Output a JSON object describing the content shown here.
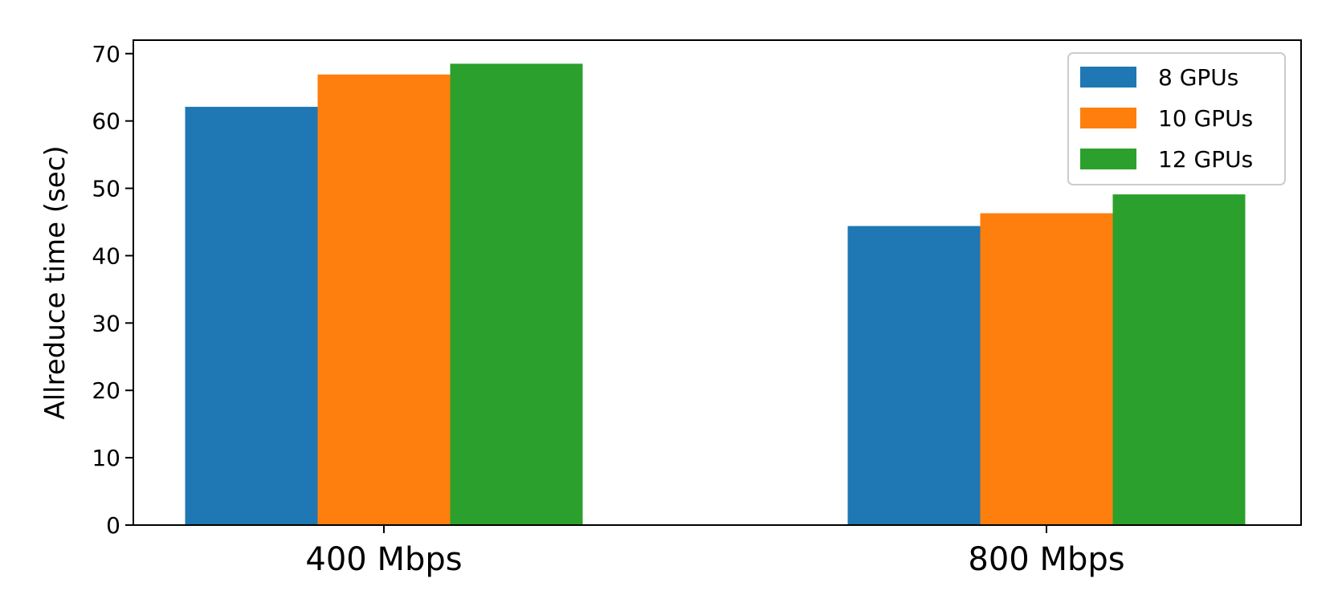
{
  "chart_data": {
    "type": "bar",
    "categories": [
      "400 Mbps",
      "800 Mbps"
    ],
    "series": [
      {
        "name": "8 GPUs",
        "values": [
          62.1,
          44.4
        ],
        "color": "#1f77b4"
      },
      {
        "name": "10 GPUs",
        "values": [
          66.9,
          46.3
        ],
        "color": "#ff7f0e"
      },
      {
        "name": "12 GPUs",
        "values": [
          68.5,
          49.1
        ],
        "color": "#2ca02c"
      }
    ],
    "xlabel": "",
    "ylabel": "Allreduce time (sec)",
    "ylim": [
      0,
      72
    ],
    "yticks": [
      0,
      10,
      20,
      30,
      40,
      50,
      60,
      70
    ],
    "legend_position": "top-right",
    "grid": false
  }
}
